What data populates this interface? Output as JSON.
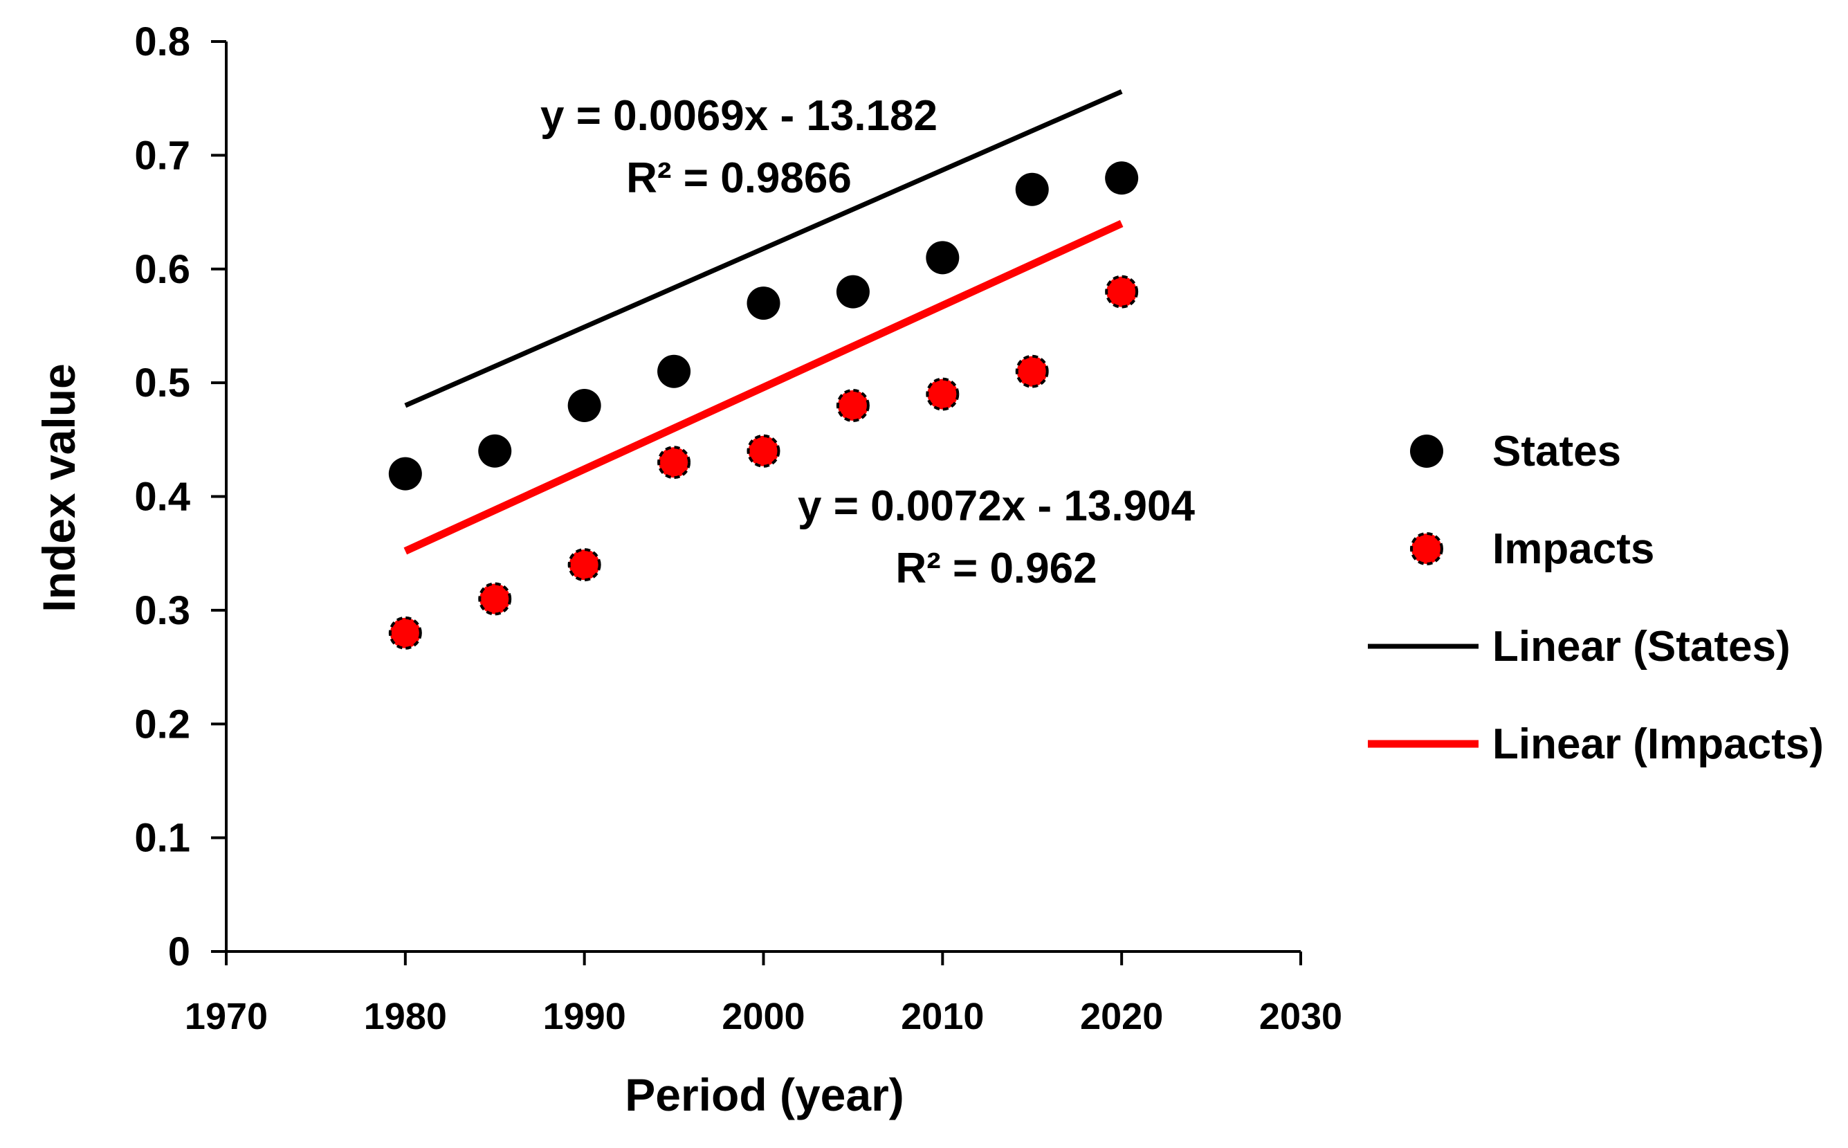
{
  "chart_data": {
    "type": "scatter",
    "title": "",
    "xlabel": "Period (year)",
    "ylabel": "Index  value",
    "xlim": [
      1970,
      2030
    ],
    "ylim": [
      0,
      0.8
    ],
    "x_ticks": [
      "1970",
      "1980",
      "1990",
      "2000",
      "2010",
      "2020",
      "2030"
    ],
    "y_ticks": [
      "0",
      "0.1",
      "0.2",
      "0.3",
      "0.4",
      "0.5",
      "0.6",
      "0.7",
      "0.8"
    ],
    "x_tick_values": [
      1970,
      1980,
      1990,
      2000,
      2010,
      2020,
      2030
    ],
    "y_tick_values": [
      0,
      0.1,
      0.2,
      0.3,
      0.4,
      0.5,
      0.6,
      0.7,
      0.8
    ],
    "x": [
      1980,
      1985,
      1990,
      1995,
      2000,
      2005,
      2010,
      2015,
      2020
    ],
    "series": [
      {
        "name": "States",
        "values": [
          0.42,
          0.44,
          0.48,
          0.51,
          0.57,
          0.58,
          0.61,
          0.67,
          0.68
        ],
        "marker_color": "#000000",
        "trend": {
          "name": "Linear (States)",
          "slope": 0.0069,
          "intercept": -13.182,
          "x_range": [
            1980,
            2020
          ],
          "color": "#000000",
          "equation": "y = 0.0069x - 13.182",
          "r2": "R² = 0.9866"
        }
      },
      {
        "name": "Impacts",
        "values": [
          0.28,
          0.31,
          0.34,
          0.43,
          0.44,
          0.48,
          0.49,
          0.51,
          0.58
        ],
        "marker_color": "#ff0000",
        "trend": {
          "name": "Linear (Impacts)",
          "slope": 0.0072,
          "intercept": -13.904,
          "x_range": [
            1980,
            2020
          ],
          "color": "#ff0000",
          "equation": "y = 0.0072x - 13.904",
          "r2": "R² = 0.962"
        }
      }
    ],
    "legend": {
      "position": "right",
      "entries": [
        "States",
        "Impacts",
        "Linear (States)",
        "Linear (Impacts)"
      ]
    },
    "grid": false
  }
}
